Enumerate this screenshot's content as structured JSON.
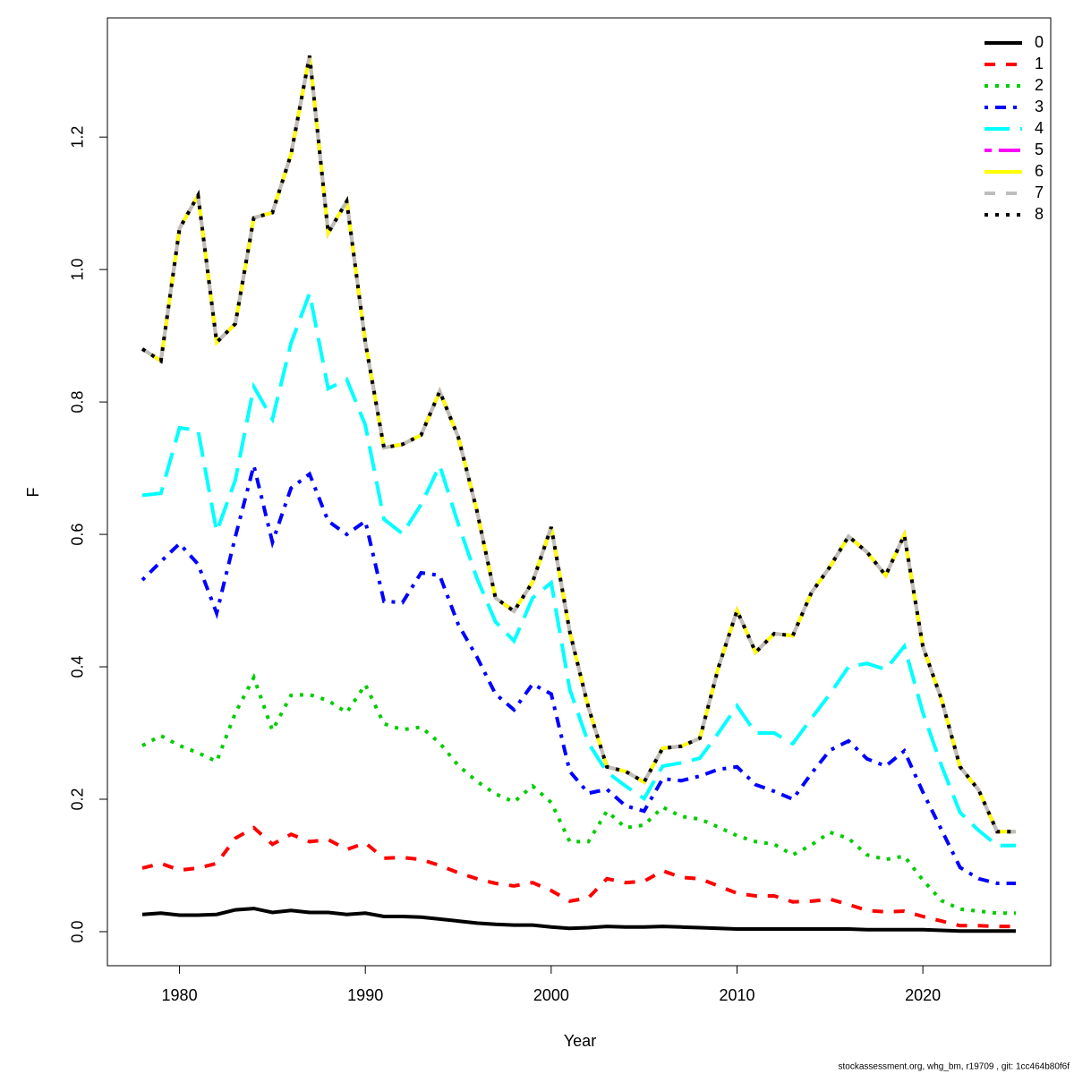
{
  "chart_data": {
    "type": "line",
    "x_label": "Year",
    "y_label": "F",
    "footnote": "stockassessment.org, whg_bm, r19709 , git: 1cc464b80f6f",
    "x": [
      1978,
      1979,
      1980,
      1981,
      1982,
      1983,
      1984,
      1985,
      1986,
      1987,
      1988,
      1989,
      1990,
      1991,
      1992,
      1993,
      1994,
      1995,
      1996,
      1997,
      1998,
      1999,
      2000,
      2001,
      2002,
      2003,
      2004,
      2005,
      2006,
      2007,
      2008,
      2009,
      2010,
      2011,
      2012,
      2013,
      2014,
      2015,
      2016,
      2017,
      2018,
      2019,
      2020,
      2021,
      2022,
      2023,
      2024,
      2025
    ],
    "xlim": [
      1976.12,
      2026.88
    ],
    "xticks": [
      1980,
      1990,
      2000,
      2010,
      2020
    ],
    "ylim": [
      -0.0514,
      1.38
    ],
    "yticks": [
      {
        "value": 0,
        "label": "0.0"
      },
      0.2,
      0.4,
      0.6,
      0.8,
      {
        "value": 1,
        "label": "1.0"
      },
      1.2
    ],
    "legend": "top-right",
    "series": [
      {
        "name": "0",
        "color": "#000000",
        "line_style": "solid",
        "values": [
          0.026,
          0.028,
          0.025,
          0.025,
          0.026,
          0.033,
          0.035,
          0.029,
          0.032,
          0.029,
          0.029,
          0.026,
          0.028,
          0.023,
          0.023,
          0.022,
          0.019,
          0.016,
          0.013,
          0.011,
          0.01,
          0.01,
          0.007,
          0.005,
          0.006,
          0.008,
          0.007,
          0.007,
          0.008,
          0.007,
          0.006,
          0.005,
          0.004,
          0.004,
          0.004,
          0.004,
          0.004,
          0.004,
          0.004,
          0.003,
          0.003,
          0.003,
          0.003,
          0.002,
          0.001,
          0.001,
          0.001,
          0.001
        ]
      },
      {
        "name": "1",
        "color": "#ff0000",
        "line_style": "dashed",
        "values": [
          0.096,
          0.103,
          0.093,
          0.096,
          0.103,
          0.141,
          0.157,
          0.132,
          0.147,
          0.136,
          0.139,
          0.124,
          0.134,
          0.111,
          0.112,
          0.109,
          0.1,
          0.089,
          0.08,
          0.073,
          0.069,
          0.074,
          0.062,
          0.046,
          0.051,
          0.08,
          0.074,
          0.076,
          0.092,
          0.082,
          0.08,
          0.069,
          0.058,
          0.054,
          0.054,
          0.045,
          0.046,
          0.049,
          0.041,
          0.032,
          0.03,
          0.031,
          0.023,
          0.016,
          0.009,
          0.009,
          0.008,
          0.008
        ]
      },
      {
        "name": "2",
        "color": "#00cd00",
        "line_style": "dotted",
        "values": [
          0.281,
          0.296,
          0.281,
          0.27,
          0.257,
          0.33,
          0.384,
          0.304,
          0.357,
          0.358,
          0.349,
          0.331,
          0.373,
          0.314,
          0.305,
          0.309,
          0.285,
          0.251,
          0.227,
          0.208,
          0.196,
          0.22,
          0.195,
          0.136,
          0.136,
          0.182,
          0.157,
          0.161,
          0.188,
          0.174,
          0.17,
          0.158,
          0.145,
          0.136,
          0.132,
          0.116,
          0.131,
          0.15,
          0.141,
          0.116,
          0.109,
          0.114,
          0.078,
          0.047,
          0.034,
          0.031,
          0.028,
          0.028
        ]
      },
      {
        "name": "3",
        "color": "#0000ff",
        "line_style": "dotdash",
        "values": [
          0.531,
          0.559,
          0.586,
          0.555,
          0.481,
          0.596,
          0.704,
          0.588,
          0.67,
          0.691,
          0.62,
          0.6,
          0.62,
          0.499,
          0.497,
          0.542,
          0.538,
          0.464,
          0.415,
          0.359,
          0.335,
          0.374,
          0.359,
          0.242,
          0.209,
          0.215,
          0.19,
          0.182,
          0.231,
          0.228,
          0.235,
          0.245,
          0.249,
          0.222,
          0.212,
          0.2,
          0.239,
          0.274,
          0.288,
          0.261,
          0.25,
          0.273,
          0.211,
          0.154,
          0.097,
          0.08,
          0.073,
          0.073
        ]
      },
      {
        "name": "4",
        "color": "#00ffff",
        "line_style": "longdash",
        "values": [
          0.659,
          0.662,
          0.761,
          0.757,
          0.604,
          0.682,
          0.823,
          0.774,
          0.889,
          0.964,
          0.82,
          0.834,
          0.765,
          0.623,
          0.601,
          0.645,
          0.704,
          0.616,
          0.534,
          0.468,
          0.439,
          0.504,
          0.527,
          0.366,
          0.285,
          0.241,
          0.22,
          0.201,
          0.25,
          0.255,
          0.262,
          0.3,
          0.341,
          0.3,
          0.3,
          0.284,
          0.322,
          0.359,
          0.4,
          0.405,
          0.396,
          0.431,
          0.331,
          0.251,
          0.18,
          0.153,
          0.13,
          0.13
        ]
      },
      {
        "name": "5",
        "color": "#ff00ff",
        "line_style": "twodash",
        "values": [
          0.88,
          0.862,
          1.062,
          1.112,
          0.89,
          0.918,
          1.078,
          1.086,
          1.174,
          1.323,
          1.055,
          1.103,
          0.89,
          0.731,
          0.736,
          0.75,
          0.816,
          0.747,
          0.636,
          0.504,
          0.484,
          0.528,
          0.611,
          0.453,
          0.339,
          0.249,
          0.242,
          0.226,
          0.277,
          0.28,
          0.292,
          0.399,
          0.485,
          0.422,
          0.45,
          0.447,
          0.512,
          0.551,
          0.597,
          0.573,
          0.538,
          0.599,
          0.431,
          0.351,
          0.249,
          0.214,
          0.151,
          0.151
        ]
      },
      {
        "name": "6",
        "color": "#ffff00",
        "line_style": "solid",
        "values": [
          0.88,
          0.862,
          1.062,
          1.112,
          0.89,
          0.918,
          1.078,
          1.086,
          1.174,
          1.323,
          1.055,
          1.103,
          0.89,
          0.731,
          0.736,
          0.75,
          0.816,
          0.747,
          0.636,
          0.504,
          0.484,
          0.528,
          0.611,
          0.453,
          0.339,
          0.249,
          0.242,
          0.226,
          0.277,
          0.28,
          0.292,
          0.399,
          0.485,
          0.422,
          0.45,
          0.447,
          0.512,
          0.551,
          0.597,
          0.573,
          0.538,
          0.599,
          0.431,
          0.351,
          0.249,
          0.214,
          0.151,
          0.151
        ]
      },
      {
        "name": "7",
        "color": "#bebebe",
        "line_style": "dashed",
        "values": [
          0.88,
          0.862,
          1.062,
          1.112,
          0.89,
          0.918,
          1.078,
          1.086,
          1.174,
          1.323,
          1.055,
          1.103,
          0.89,
          0.731,
          0.736,
          0.75,
          0.816,
          0.747,
          0.636,
          0.504,
          0.484,
          0.528,
          0.611,
          0.453,
          0.339,
          0.249,
          0.242,
          0.226,
          0.277,
          0.28,
          0.292,
          0.399,
          0.485,
          0.422,
          0.45,
          0.447,
          0.512,
          0.551,
          0.597,
          0.573,
          0.538,
          0.599,
          0.431,
          0.351,
          0.249,
          0.214,
          0.151,
          0.151
        ]
      },
      {
        "name": "8",
        "color": "#000000",
        "line_style": "dotted",
        "values": [
          0.88,
          0.862,
          1.062,
          1.112,
          0.89,
          0.918,
          1.078,
          1.086,
          1.174,
          1.323,
          1.055,
          1.103,
          0.89,
          0.731,
          0.736,
          0.75,
          0.816,
          0.747,
          0.636,
          0.504,
          0.484,
          0.528,
          0.611,
          0.453,
          0.339,
          0.249,
          0.242,
          0.226,
          0.277,
          0.28,
          0.292,
          0.399,
          0.485,
          0.422,
          0.45,
          0.447,
          0.512,
          0.551,
          0.597,
          0.573,
          0.538,
          0.599,
          0.431,
          0.351,
          0.249,
          0.214,
          0.151,
          0.151
        ]
      }
    ]
  }
}
